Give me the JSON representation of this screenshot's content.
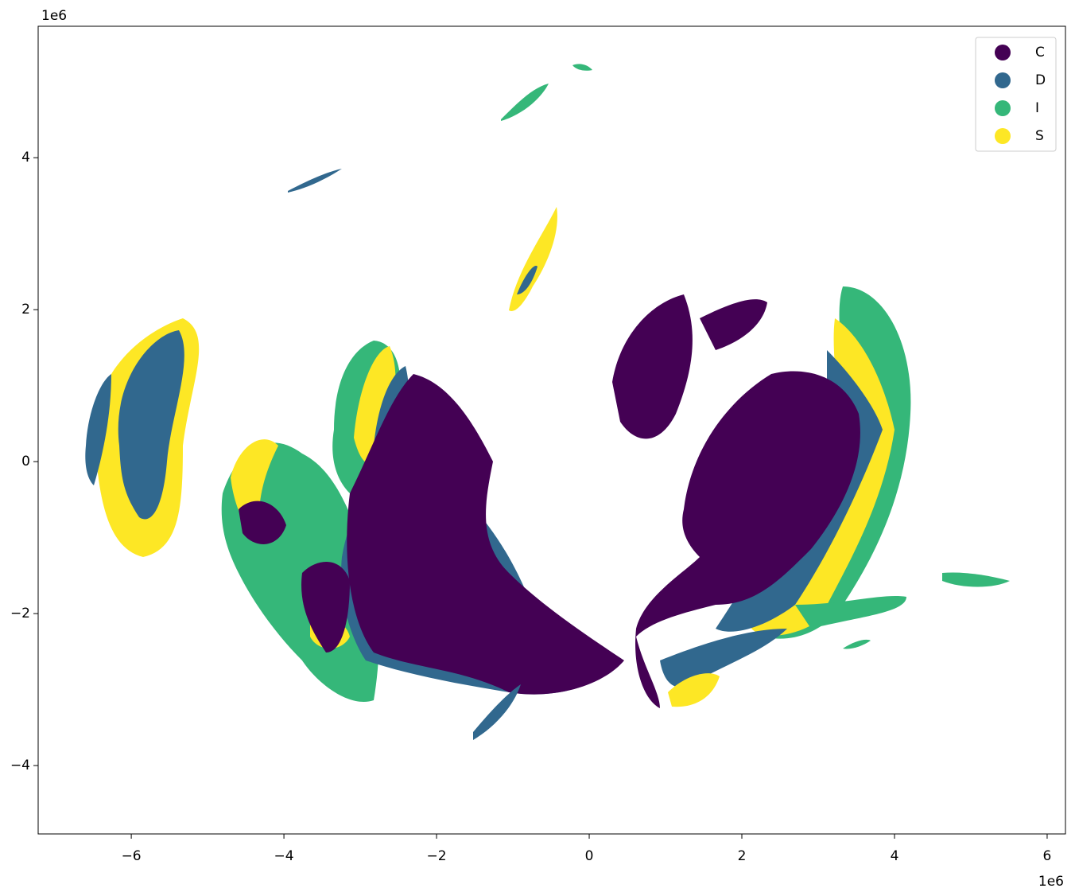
{
  "chart_data": {
    "type": "map",
    "xlim": [
      -7.22,
      6.24
    ],
    "ylim": [
      -4.9,
      5.73
    ],
    "xticks": [
      {
        "value": -6,
        "label": "−6"
      },
      {
        "value": -4,
        "label": "−4"
      },
      {
        "value": -2,
        "label": "−2"
      },
      0,
      2,
      4,
      6
    ],
    "yticks": [
      {
        "value": -4,
        "label": "−4"
      },
      {
        "value": -2,
        "label": "−2"
      },
      0,
      2,
      4
    ],
    "x_offset_label": "1e6",
    "y_offset_label": "1e6",
    "legend": "upper right",
    "series": [
      {
        "name": "C",
        "color": "#440154"
      },
      {
        "name": "D",
        "color": "#31688e"
      },
      {
        "name": "I",
        "color": "#35b779"
      },
      {
        "name": "S",
        "color": "#fde725"
      }
    ]
  }
}
